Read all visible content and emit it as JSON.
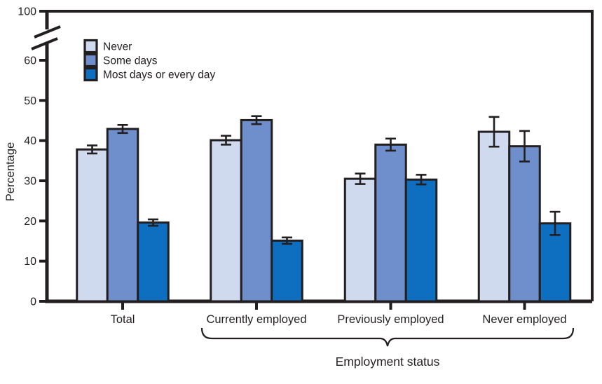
{
  "chart_data": {
    "type": "bar",
    "title": "",
    "ylabel": "Percentage",
    "xlabel_group": "Employment status",
    "categories": [
      "Total",
      "Currently employed",
      "Previously employed",
      "Never employed"
    ],
    "series": [
      {
        "name": "Never",
        "color": "#cfdaef",
        "values": [
          37.8,
          40.1,
          30.5,
          42.2
        ],
        "errors": [
          1.0,
          1.1,
          1.3,
          3.7
        ]
      },
      {
        "name": "Some days",
        "color": "#6e8fcb",
        "values": [
          42.9,
          45.1,
          39.0,
          38.6
        ],
        "errors": [
          1.0,
          1.0,
          1.5,
          3.8
        ]
      },
      {
        "name": "Most days or every day",
        "color": "#0e6fc1",
        "values": [
          19.6,
          15.1,
          30.3,
          19.4
        ],
        "errors": [
          0.8,
          0.8,
          1.2,
          2.9
        ]
      }
    ],
    "y_ticks": [
      0,
      10,
      20,
      30,
      40,
      50,
      60,
      100
    ],
    "ylim_display": [
      0,
      60
    ],
    "axis_break": true,
    "error_bars": true,
    "grid": false,
    "legend_position": "top-left-inside",
    "bracket_categories": [
      "Currently employed",
      "Previously employed",
      "Never employed"
    ],
    "frame_color": "#231f20"
  }
}
